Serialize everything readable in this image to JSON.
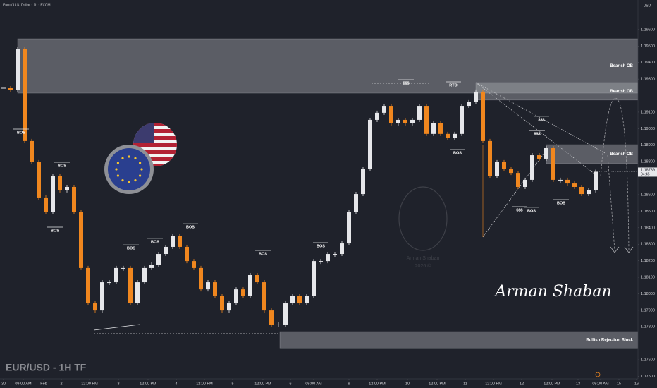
{
  "chart_data": {
    "type": "candlestick",
    "header": "Euro / U.S. Dollar · 1h · FXCM",
    "title": "EUR/USD - 1H TF",
    "currency": "USD",
    "signature": "Arman Shaban",
    "watermark": [
      "Arman Shaban",
      "2026 ©"
    ],
    "up_color": "#e6e7ea",
    "down_color": "#f0871f",
    "values": [
      1.19245,
      1.19233,
      1.1948,
      1.18925,
      1.18797,
      1.18583,
      1.18497,
      1.18711,
      1.18626,
      1.18647,
      1.18497,
      1.18156,
      1.17942,
      1.17899,
      1.1807,
      1.1807,
      1.18156,
      1.18156,
      1.17942,
      1.1807,
      1.18156,
      1.18177,
      1.18241,
      1.18284,
      1.18348,
      1.18284,
      1.18198,
      1.18156,
      1.18027,
      1.1807,
      1.17985,
      1.17899,
      1.17942,
      1.18027,
      1.17985,
      1.18113,
      1.1807,
      1.17899,
      1.17814,
      1.17814,
      1.17942,
      1.17985,
      1.17942,
      1.17985,
      1.18198,
      1.18198,
      1.18241,
      1.18241,
      1.18305,
      1.18497,
      1.18604,
      1.18754,
      1.19053,
      1.19096,
      1.19138,
      1.19032,
      1.19053,
      1.19032,
      1.19053,
      1.19138,
      1.18968,
      1.19032,
      1.18968,
      1.18946,
      1.18968,
      1.19138,
      1.1916,
      1.19224,
      1.18925,
      1.18711,
      1.18797,
      1.18754,
      1.18732,
      1.18647,
      1.1869,
      1.18839,
      1.18818,
      1.18882,
      1.1869,
      1.1869,
      1.18668,
      1.18647,
      1.18604,
      1.18626,
      1.18739
    ],
    "last_price": 1.18739,
    "countdown": "04:45",
    "xlim": [
      -0.5,
      90
    ],
    "xticks": [
      {
        "value": 0,
        "label": "30"
      },
      {
        "value": 2.8,
        "label": "09:00 AM"
      },
      {
        "value": 5.7,
        "label": "Feb"
      },
      {
        "value": 8.2,
        "label": "2"
      },
      {
        "value": 12.2,
        "label": "12:00 PM"
      },
      {
        "value": 16.3,
        "label": "3"
      },
      {
        "value": 20.5,
        "label": "12:00 PM"
      },
      {
        "value": 24.5,
        "label": "4"
      },
      {
        "value": 28.5,
        "label": "12:00 PM"
      },
      {
        "value": 32.5,
        "label": "5"
      },
      {
        "value": 36.8,
        "label": "12:00 PM"
      },
      {
        "value": 40.7,
        "label": "6"
      },
      {
        "value": 44,
        "label": "09:00 AM"
      },
      {
        "value": 49,
        "label": "9"
      },
      {
        "value": 53,
        "label": "12:00 PM"
      },
      {
        "value": 57.3,
        "label": "10"
      },
      {
        "value": 61.5,
        "label": "12:00 PM"
      },
      {
        "value": 65.5,
        "label": "11"
      },
      {
        "value": 69.5,
        "label": "12:00 PM"
      },
      {
        "value": 73.5,
        "label": "12"
      },
      {
        "value": 77.8,
        "label": "12:00 PM"
      },
      {
        "value": 81.5,
        "label": "13"
      },
      {
        "value": 84.7,
        "label": "09:00 AM"
      },
      {
        "value": 87.3,
        "label": "15"
      },
      {
        "value": 89.8,
        "label": "16"
      }
    ],
    "ylim": [
      1.17485,
      1.19779
    ],
    "yticks": [
      {
        "value": 1.196,
        "label": "1.19600"
      },
      {
        "value": 1.195,
        "label": "1.19500"
      },
      {
        "value": 1.194,
        "label": "1.19400"
      },
      {
        "value": 1.193,
        "label": "1.19300"
      },
      {
        "value": 1.191,
        "label": "1.19100"
      },
      {
        "value": 1.19,
        "label": "1.19000"
      },
      {
        "value": 1.189,
        "label": "1.18900"
      },
      {
        "value": 1.188,
        "label": "1.18800"
      },
      {
        "value": 1.186,
        "label": "1.18600"
      },
      {
        "value": 1.185,
        "label": "1.18500"
      },
      {
        "value": 1.184,
        "label": "1.18400"
      },
      {
        "value": 1.183,
        "label": "1.18300"
      },
      {
        "value": 1.182,
        "label": "1.18200"
      },
      {
        "value": 1.181,
        "label": "1.18100"
      },
      {
        "value": 1.18,
        "label": "1.18000"
      },
      {
        "value": 1.179,
        "label": "1.17900"
      },
      {
        "value": 1.178,
        "label": "1.17800"
      },
      {
        "value": 1.176,
        "label": "1.17600"
      },
      {
        "value": 1.175,
        "label": "1.17500"
      }
    ],
    "zones": [
      {
        "label": "Bearish OB",
        "top": 1.19544,
        "bottom": 1.19215,
        "start": 2
      },
      {
        "label": "Bearish OB",
        "top": 1.19279,
        "bottom": 1.19173,
        "start": 67
      },
      {
        "label": "Bearish OB",
        "top": 1.18903,
        "bottom": 1.18788,
        "start": 77
      },
      {
        "label": "Bullish Rejection Block",
        "top": 1.17771,
        "bottom": 1.17668,
        "start": 39.2
      }
    ],
    "annotations": [
      {
        "text": "BOS",
        "x": 2.5,
        "y": 1.18976
      },
      {
        "text": "BOS",
        "x": 8.3,
        "y": 1.18775
      },
      {
        "text": "BOS",
        "x": 7.3,
        "y": 1.18382
      },
      {
        "text": "BOS",
        "x": 18.1,
        "y": 1.18275
      },
      {
        "text": "BOS",
        "x": 21.5,
        "y": 1.18314
      },
      {
        "text": "BOS",
        "x": 26.5,
        "y": 1.18403
      },
      {
        "text": "BOS",
        "x": 36.8,
        "y": 1.18241
      },
      {
        "text": "BOS",
        "x": 45,
        "y": 1.18288
      },
      {
        "text": "BOS",
        "x": 64.4,
        "y": 1.18852
      },
      {
        "text": "BOS",
        "x": 74.9,
        "y": 1.18502
      },
      {
        "text": "BOS",
        "x": 79.1,
        "y": 1.18549
      },
      {
        "text": "$$$",
        "x": 57.1,
        "y": 1.19275
      },
      {
        "text": "$$$",
        "x": 76.3,
        "y": 1.19053
      },
      {
        "text": "$$$",
        "x": 75.7,
        "y": 1.18968
      },
      {
        "text": "$$$",
        "x": 73.2,
        "y": 1.18506
      },
      {
        "text": "RTO",
        "x": 63.8,
        "y": 1.19262
      }
    ]
  }
}
